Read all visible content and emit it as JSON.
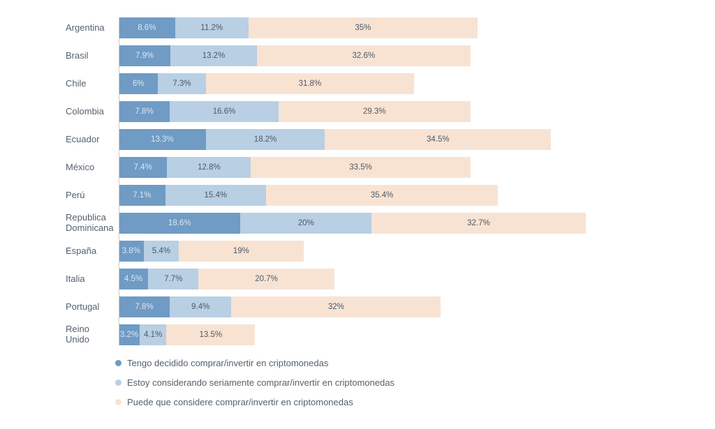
{
  "chart_data": {
    "type": "bar",
    "subtype": "horizontal-stacked",
    "unit": "%",
    "title": "",
    "grid": false,
    "legend_position": "bottom-left",
    "axis_line_color": "#cccccc",
    "background": "#ffffff",
    "categories": [
      "Argentina",
      "Brasil",
      "Chile",
      "Colombia",
      "Ecuador",
      "México",
      "Perú",
      "Republica Dominicana",
      "España",
      "Italia",
      "Portugal",
      "Reino Unido"
    ],
    "series": [
      {
        "name": "Tengo decidido comprar/invertir en criptomonedas",
        "color": "#6f9bc5",
        "text_color": "#dde6ee",
        "values": [
          8.6,
          7.9,
          6,
          7.8,
          13.3,
          7.4,
          7.1,
          18.6,
          3.8,
          4.5,
          7.8,
          3.2
        ],
        "labels": [
          "8.6%",
          "7.9%",
          "6%",
          "7.8%",
          "13.3%",
          "7.4%",
          "7.1%",
          "18.6%",
          "3.8%",
          "4.5%",
          "7.8%",
          "3.2%"
        ]
      },
      {
        "name": "Estoy considerando seriamente comprar/invertir en criptomonedas",
        "color": "#b9cfe4",
        "text_color": "#4d5966",
        "values": [
          11.2,
          13.2,
          7.3,
          16.6,
          18.2,
          12.8,
          15.4,
          20,
          5.4,
          7.7,
          9.4,
          4.1
        ],
        "labels": [
          "11.2%",
          "13.2%",
          "7.3%",
          "16.6%",
          "18.2%",
          "12.8%",
          "15.4%",
          "20%",
          "5.4%",
          "7.7%",
          "9.4%",
          "4.1%"
        ]
      },
      {
        "name": "Puede que considere comprar/invertir en criptomonedas",
        "color": "#f8e3d3",
        "text_color": "#4d5966",
        "values": [
          35,
          32.6,
          31.8,
          29.3,
          34.5,
          33.5,
          35.4,
          32.7,
          19,
          20.7,
          32,
          13.5
        ],
        "labels": [
          "35%",
          "32.6%",
          "31.8%",
          "29.3%",
          "34.5%",
          "33.5%",
          "35.4%",
          "32.7%",
          "19%",
          "20.7%",
          "32%",
          "13.5%"
        ]
      }
    ]
  }
}
